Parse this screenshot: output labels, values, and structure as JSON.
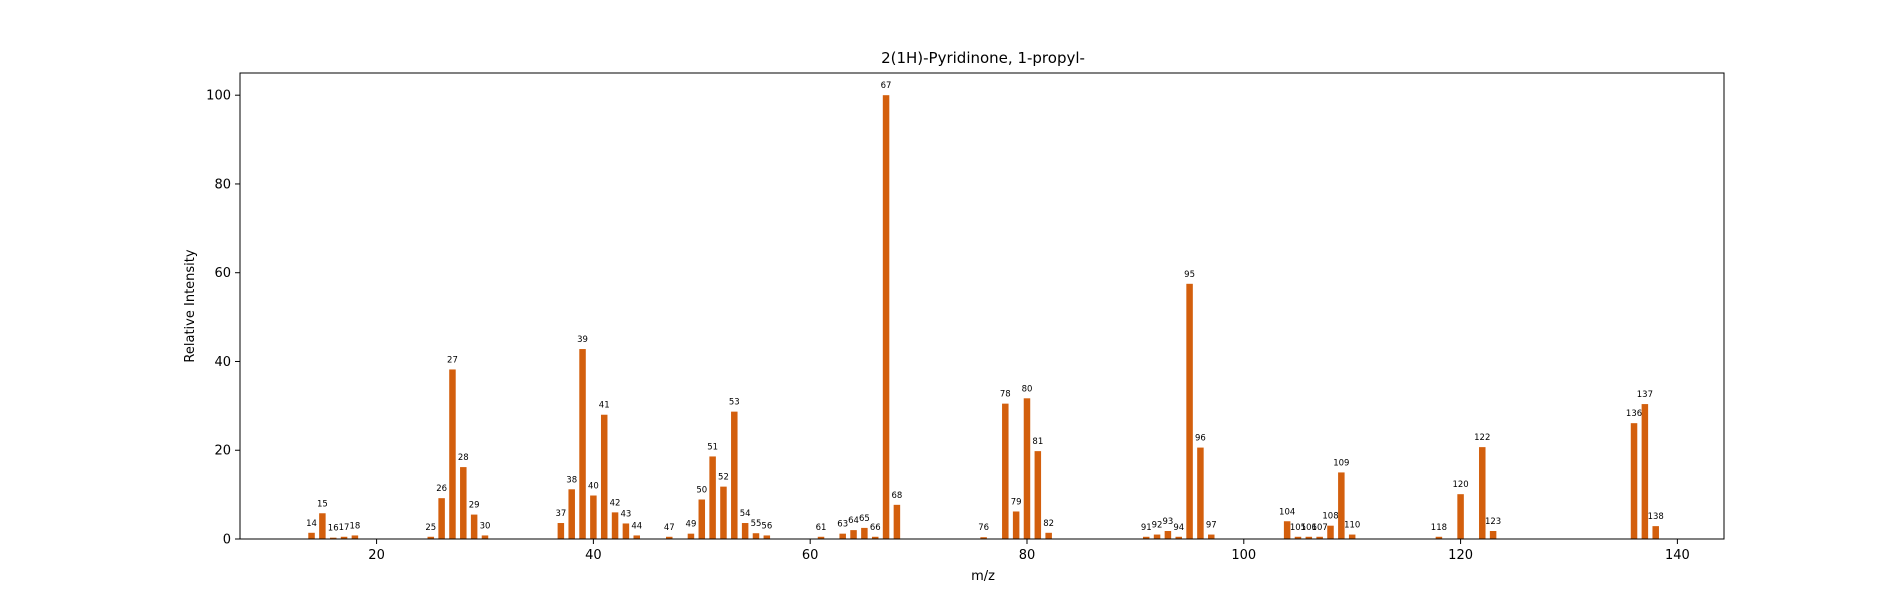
{
  "chart_data": {
    "type": "bar",
    "title": "2(1H)-Pyridinone, 1-propyl-",
    "xlabel": "m/z",
    "ylabel": "Relative Intensity",
    "xlim": [
      7.4,
      144.3
    ],
    "ylim": [
      0,
      105
    ],
    "xticks": [
      20,
      40,
      60,
      80,
      100,
      120,
      140
    ],
    "yticks": [
      0,
      20,
      40,
      60,
      80,
      100
    ],
    "grid": false,
    "bar_color": "#d35f0d",
    "x": [
      14,
      15,
      16,
      17,
      18,
      25,
      26,
      27,
      28,
      29,
      30,
      37,
      38,
      39,
      40,
      41,
      42,
      43,
      44,
      47,
      49,
      50,
      51,
      52,
      53,
      54,
      55,
      56,
      61,
      63,
      64,
      65,
      66,
      67,
      68,
      76,
      78,
      79,
      80,
      81,
      82,
      91,
      92,
      93,
      94,
      95,
      96,
      97,
      104,
      105,
      106,
      107,
      108,
      109,
      110,
      118,
      120,
      122,
      123,
      136,
      137,
      138
    ],
    "values": [
      1.4,
      5.8,
      0.3,
      0.5,
      0.8,
      0.5,
      9.2,
      38.2,
      16.2,
      5.5,
      0.8,
      3.6,
      11.2,
      42.8,
      9.8,
      28.0,
      6.0,
      3.5,
      0.8,
      0.5,
      1.2,
      8.9,
      18.6,
      11.8,
      28.7,
      3.6,
      1.3,
      0.8,
      0.5,
      1.2,
      2.0,
      2.5,
      0.5,
      100.0,
      7.7,
      0.4,
      30.5,
      6.2,
      31.7,
      19.8,
      1.4,
      0.5,
      1.0,
      1.8,
      0.5,
      57.5,
      20.6,
      1.0,
      4.0,
      0.5,
      0.5,
      0.5,
      3.0,
      15.0,
      1.0,
      0.5,
      10.1,
      20.7,
      1.8,
      26.1,
      30.4,
      2.9
    ],
    "labels": [
      "14",
      "15",
      "16",
      "17",
      "18",
      "25",
      "26",
      "27",
      "28",
      "29",
      "30",
      "37",
      "38",
      "39",
      "40",
      "41",
      "42",
      "43",
      "44",
      "47",
      "49",
      "50",
      "51",
      "52",
      "53",
      "54",
      "55",
      "56",
      "61",
      "63",
      "64",
      "65",
      "66",
      "67",
      "68",
      "76",
      "78",
      "79",
      "80",
      "81",
      "82",
      "91",
      "92",
      "93",
      "94",
      "95",
      "96",
      "97",
      "104",
      "105",
      "106",
      "107",
      "108",
      "109",
      "110",
      "118",
      "120",
      "122",
      "123",
      "136",
      "137",
      "138"
    ]
  }
}
